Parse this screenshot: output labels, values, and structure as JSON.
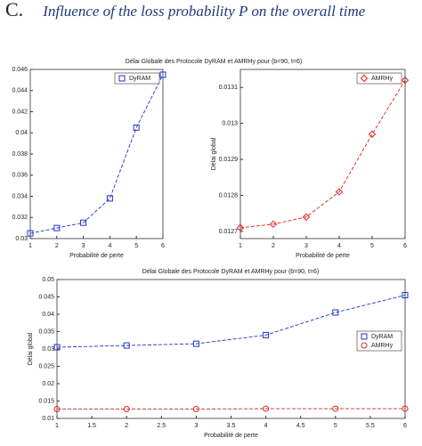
{
  "figure_label": "C.",
  "caption": "Influence of the loss probability P on the overall time",
  "chart_data": [
    {
      "type": "line",
      "title": "Délai Globale des Protocole DyRAM et AMRHy pour (b=90, t=6)",
      "xlabel": "Probabilité de perte",
      "x": [
        1,
        2,
        3,
        4,
        5,
        6
      ],
      "xlim": [
        1,
        6
      ],
      "xticks": [
        1,
        2,
        3,
        4,
        5,
        6
      ],
      "ylim": [
        0.03,
        0.046
      ],
      "yticks": [
        0.03,
        0.032,
        0.034,
        0.036,
        0.038,
        0.04,
        0.042,
        0.044,
        0.046
      ],
      "legend": "upper right",
      "series": [
        {
          "name": "DyRAM",
          "color": "#2233cc",
          "marker": "square",
          "values": [
            0.0305,
            0.031,
            0.0315,
            0.0338,
            0.0405,
            0.0455
          ]
        }
      ]
    },
    {
      "type": "line",
      "ylabel": "Délai global",
      "xlabel": "Probabilité de perte",
      "x": [
        1,
        2,
        3,
        4,
        5,
        6
      ],
      "xlim": [
        1,
        6
      ],
      "xticks": [
        1,
        2,
        3,
        4,
        5,
        6
      ],
      "ylim": [
        0.01268,
        0.01315
      ],
      "yticks": [
        0.0127,
        0.0128,
        0.0129,
        0.013,
        0.0131
      ],
      "legend": "upper right",
      "series": [
        {
          "name": "AMRHy",
          "color": "#dd2222",
          "marker": "diamond",
          "values": [
            0.01271,
            0.01272,
            0.01274,
            0.01281,
            0.01297,
            0.01312
          ]
        }
      ]
    },
    {
      "type": "line",
      "title": "Délai Globale des Protocole DyRAM et AMRHy pour (b=90, t=6)",
      "ylabel": "Délai global",
      "xlabel": "Probabilité de perte",
      "x": [
        1,
        2,
        3,
        4,
        5,
        6
      ],
      "xlim": [
        1,
        6
      ],
      "xticks": [
        1,
        1.5,
        2,
        2.5,
        3,
        3.5,
        4,
        4.5,
        5,
        5.5,
        6
      ],
      "ylim": [
        0.01,
        0.05
      ],
      "yticks": [
        0.01,
        0.015,
        0.02,
        0.025,
        0.03,
        0.035,
        0.04,
        0.045,
        0.05
      ],
      "legend": "center right",
      "series": [
        {
          "name": "DyRAM",
          "color": "#2233cc",
          "marker": "square",
          "values": [
            0.0305,
            0.031,
            0.0315,
            0.034,
            0.0405,
            0.0455
          ]
        },
        {
          "name": "AMRHy",
          "color": "#dd2222",
          "marker": "circle",
          "values": [
            0.0127,
            0.0127,
            0.0127,
            0.0128,
            0.0128,
            0.0128
          ]
        }
      ]
    }
  ]
}
